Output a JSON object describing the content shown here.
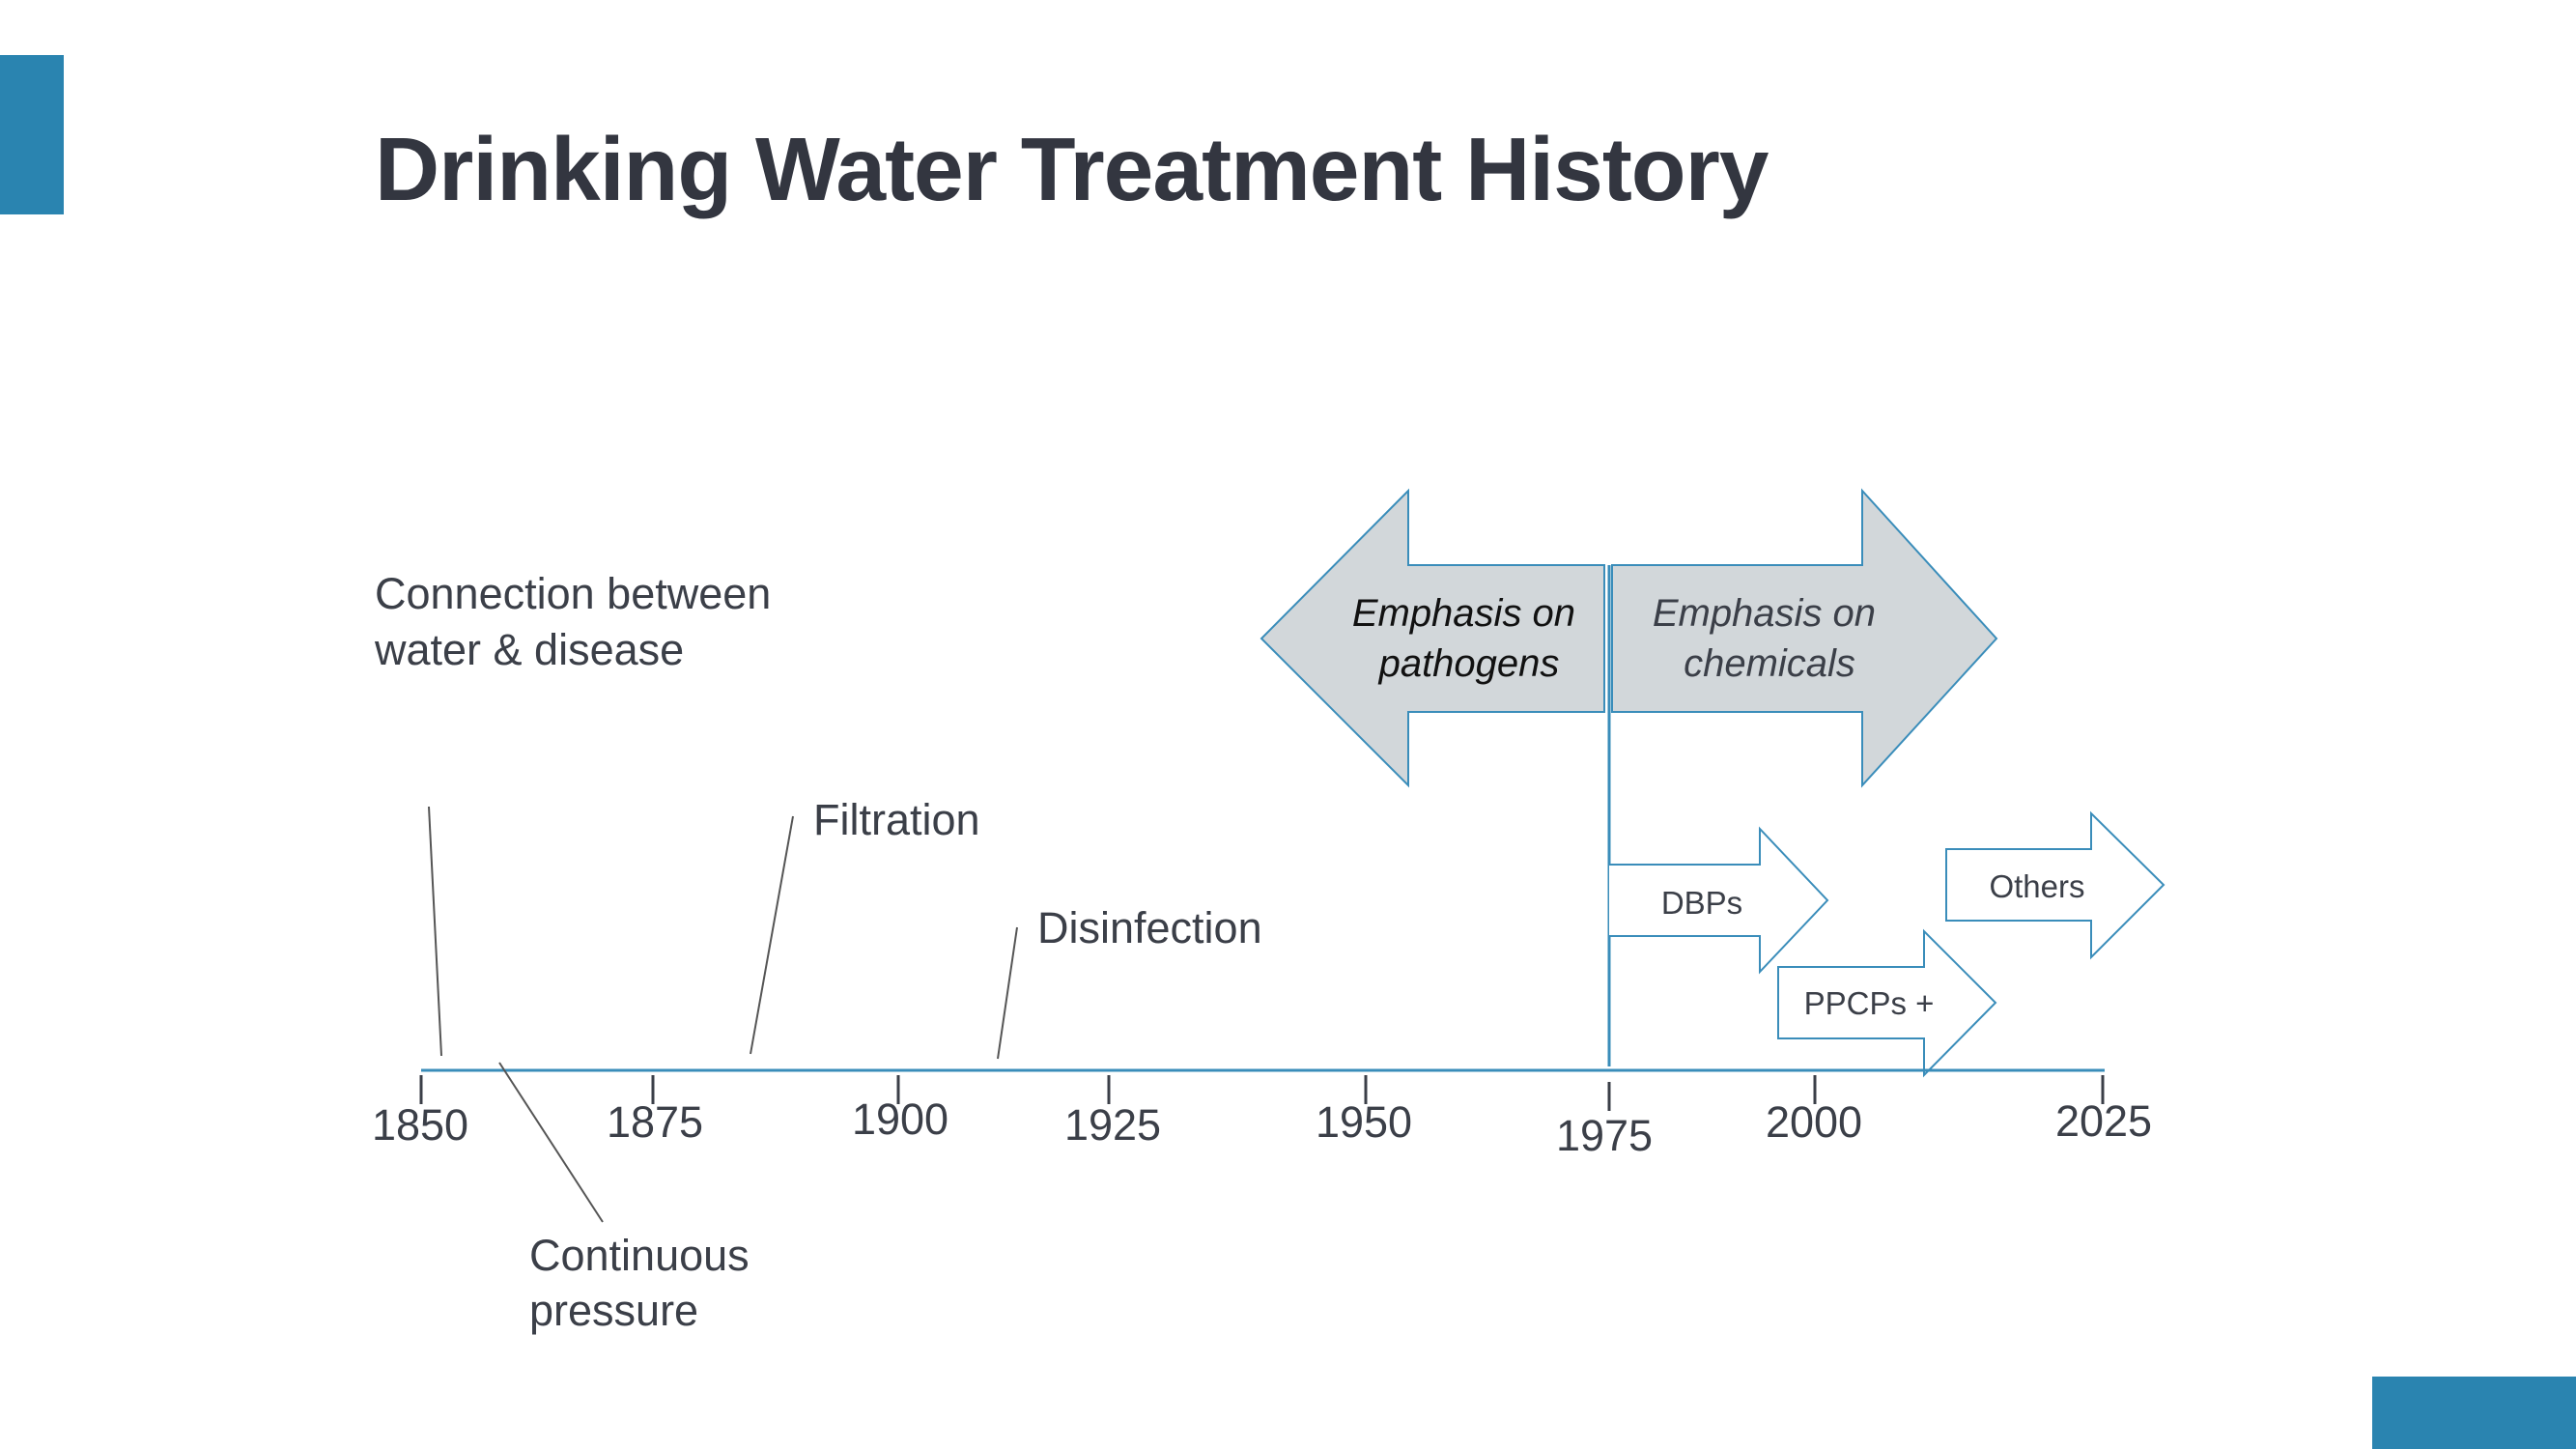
{
  "title": "Drinking Water Treatment History",
  "colors": {
    "accent": "#2A84B0",
    "text": "#333640",
    "arrow_fill": "#D2D7DA",
    "arrow_stroke": "#3A8DBA",
    "event_line": "#555555"
  },
  "timeline": {
    "ticks": [
      "1850",
      "1875",
      "1900",
      "1925",
      "1950",
      "1975",
      "2000",
      "2025"
    ]
  },
  "events": {
    "connection": [
      "Connection between",
      "water & disease"
    ],
    "filtration": [
      "Filtration"
    ],
    "disinfection": [
      "Disinfection"
    ],
    "continuous": [
      "Continuous",
      "pressure"
    ]
  },
  "arrows": {
    "pathogens": [
      "Emphasis on",
      "pathogens"
    ],
    "chemicals": [
      "Emphasis on",
      "chemicals"
    ],
    "dbps": [
      "DBPs"
    ],
    "ppcps": [
      "PPCPs +"
    ],
    "others": [
      "Others"
    ]
  }
}
